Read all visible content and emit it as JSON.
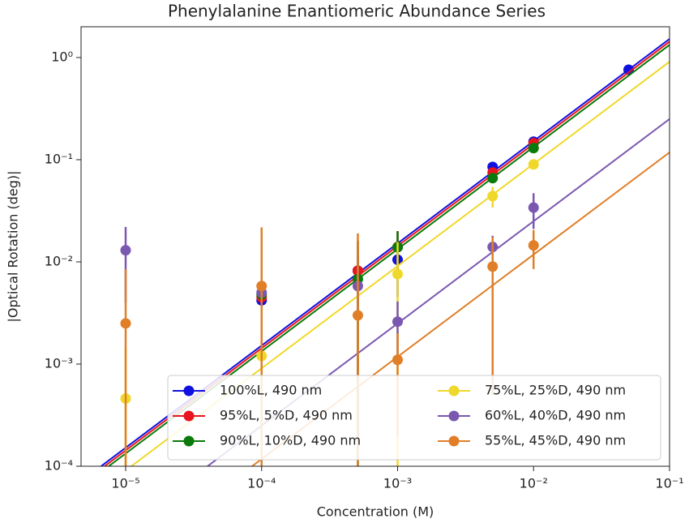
{
  "chart_data": {
    "type": "scatter",
    "title": "Phenylalanine Enantiomeric Abundance Series",
    "x_label": "Concentration (M)",
    "y_label": "|Optical Rotation (deg)|",
    "xscale": "log",
    "yscale": "log",
    "xlim": [
      4.7e-06,
      0.1
    ],
    "ylim": [
      0.0001,
      2
    ],
    "xticks": [
      {
        "value": 1e-05,
        "label": "10⁻⁵"
      },
      {
        "value": 0.0001,
        "label": "10⁻⁴"
      },
      {
        "value": 0.001,
        "label": "10⁻³"
      },
      {
        "value": 0.01,
        "label": "10⁻²"
      },
      {
        "value": 0.1,
        "label": "10⁻¹"
      }
    ],
    "yticks": [
      {
        "value": 0.0001,
        "label": "10⁻⁴"
      },
      {
        "value": 0.001,
        "label": "10⁻³"
      },
      {
        "value": 0.01,
        "label": "10⁻²"
      },
      {
        "value": 0.1,
        "label": "10⁻¹"
      },
      {
        "value": 1,
        "label": "10⁰"
      }
    ],
    "legend": "lower right",
    "legend_ncol": 2,
    "series": [
      {
        "name": "100%L, 490 nm",
        "color": "#1010e0",
        "x": [
          0.0001,
          0.00051,
          0.001,
          0.005,
          0.01,
          0.05
        ],
        "values": [
          0.0042,
          0.0082,
          0.0105,
          0.085,
          0.15,
          0.76
        ],
        "errors": [
          0.002,
          0.003,
          0.006,
          0.005,
          0.005,
          0.02
        ],
        "fit_x": [
          6.6e-06,
          0.1
        ],
        "fit_values": [
          0.0001,
          1.52
        ]
      },
      {
        "name": "95%L, 5%D, 490 nm",
        "color": "#e8141e",
        "x": [
          0.0001,
          0.00051,
          0.001,
          0.005,
          0.01
        ],
        "values": [
          0.0045,
          0.0082,
          0.014,
          0.075,
          0.145
        ],
        "errors": [
          0.006,
          0.008,
          0.006,
          0.005,
          0.005
        ],
        "fit_x": [
          7e-06,
          0.1
        ],
        "fit_values": [
          0.0001,
          1.43
        ]
      },
      {
        "name": "90%L, 10%D, 490 nm",
        "color": "#0a7a0a",
        "x": [
          0.0001,
          0.00051,
          0.001,
          0.005,
          0.01
        ],
        "values": [
          0.0048,
          0.0068,
          0.0139,
          0.066,
          0.13
        ],
        "errors": [
          0.005,
          0.009,
          0.006,
          0.004,
          0.004
        ],
        "fit_x": [
          7.5e-06,
          0.1
        ],
        "fit_values": [
          0.0001,
          1.33
        ]
      },
      {
        "name": "75%L, 25%D, 490 nm",
        "color": "#f0d82a",
        "x": [
          1e-05,
          0.0001,
          0.001,
          0.005,
          0.01
        ],
        "values": [
          0.00046,
          0.0012,
          0.0076,
          0.044,
          0.09
        ],
        "errors": [
          0.001,
          0.002,
          0.008,
          0.01,
          0.008
        ],
        "fit_x": [
          1.1e-05,
          0.1
        ],
        "fit_values": [
          0.0001,
          0.91
        ]
      },
      {
        "name": "60%L, 40%D, 490 nm",
        "color": "#7b58b0",
        "x": [
          1e-05,
          0.0001,
          0.00051,
          0.001,
          0.005,
          0.01
        ],
        "values": [
          0.013,
          0.005,
          0.0058,
          0.0026,
          0.014,
          0.034
        ],
        "errors": [
          0.009,
          0.005,
          0.003,
          0.0015,
          0.004,
          0.013
        ],
        "fit_x": [
          4e-05,
          0.1
        ],
        "fit_values": [
          0.0001,
          0.25
        ]
      },
      {
        "name": "55%L, 45%D, 490 nm",
        "color": "#e07f28",
        "x": [
          1e-05,
          0.0001,
          0.00051,
          0.001,
          0.005,
          0.01
        ],
        "values": [
          0.0025,
          0.0058,
          0.003,
          0.0011,
          0.009,
          0.0145
        ],
        "errors": [
          0.006,
          0.016,
          0.016,
          0.0009,
          0.0085,
          0.006
        ],
        "fit_x": [
          8.5e-05,
          0.1
        ],
        "fit_values": [
          0.0001,
          0.118
        ]
      }
    ]
  }
}
